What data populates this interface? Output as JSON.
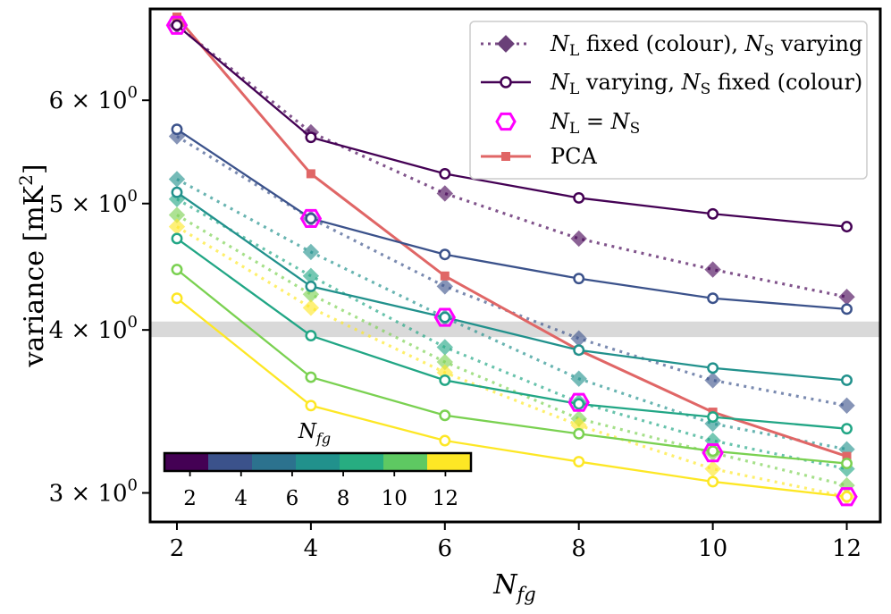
{
  "chart_data": {
    "type": "line",
    "xlabel": "N_fg",
    "ylabel": "variance [mK^2]",
    "yscale": "log",
    "x": [
      2,
      4,
      6,
      8,
      10,
      12
    ],
    "xlim": [
      1.6,
      12.5
    ],
    "ylim": [
      2.85,
      7.05
    ],
    "xticks": [
      "2",
      "4",
      "6",
      "8",
      "10",
      "12"
    ],
    "yticks": [
      {
        "value": 3,
        "mant": "3",
        "exp": "0"
      },
      {
        "value": 4,
        "mant": "4",
        "exp": "0"
      },
      {
        "value": 5,
        "mant": "5",
        "exp": "0"
      },
      {
        "value": 6,
        "mant": "6",
        "exp": "0"
      }
    ],
    "reference_band": {
      "low": 3.95,
      "high": 4.06
    },
    "varying": [
      {
        "name": "N_S = 2",
        "color": "#440154",
        "values": [
          6.85,
          5.62,
          5.27,
          5.05,
          4.91,
          4.8
        ]
      },
      {
        "name": "N_S = 4",
        "color": "#3b528b",
        "values": [
          5.7,
          4.87,
          4.57,
          4.38,
          4.23,
          4.15
        ]
      },
      {
        "name": "N_S = 6",
        "color": "#21918c",
        "values": [
          5.1,
          4.32,
          4.09,
          3.86,
          3.74,
          3.66
        ]
      },
      {
        "name": "N_S = 8",
        "color": "#21a685",
        "values": [
          4.7,
          3.96,
          3.66,
          3.51,
          3.43,
          3.36
        ]
      },
      {
        "name": "N_S = 10",
        "color": "#7ad151",
        "values": [
          4.45,
          3.68,
          3.44,
          3.33,
          3.23,
          3.16
        ]
      },
      {
        "name": "N_S = 12",
        "color": "#fde725",
        "values": [
          4.23,
          3.5,
          3.29,
          3.17,
          3.06,
          2.98
        ]
      }
    ],
    "fixed": [
      {
        "name": "N_L = 2",
        "color": "#440154",
        "values": [
          6.85,
          5.67,
          5.09,
          4.7,
          4.45,
          4.24
        ]
      },
      {
        "name": "N_L = 4",
        "color": "#3b528b",
        "values": [
          5.63,
          4.87,
          4.32,
          3.94,
          3.66,
          3.5
        ]
      },
      {
        "name": "N_L = 6",
        "color": "#21918c",
        "values": [
          5.22,
          4.59,
          4.09,
          3.67,
          3.39,
          3.24
        ]
      },
      {
        "name": "N_L = 8",
        "color": "#21a685",
        "values": [
          5.04,
          4.4,
          3.88,
          3.52,
          3.29,
          3.13
        ]
      },
      {
        "name": "N_L = 10",
        "color": "#7ad151",
        "values": [
          4.9,
          4.26,
          3.78,
          3.42,
          3.22,
          3.04
        ]
      },
      {
        "name": "N_L = 12",
        "color": "#fde725",
        "values": [
          4.8,
          4.16,
          3.71,
          3.38,
          3.13,
          2.98
        ]
      }
    ],
    "equal": {
      "name": "N_L = N_S",
      "color": "#ff00ff",
      "values": [
        6.85,
        4.87,
        4.09,
        3.52,
        3.22,
        2.98
      ]
    },
    "pca": {
      "name": "PCA",
      "color": "#e06666",
      "values": [
        6.95,
        5.27,
        4.4,
        3.86,
        3.46,
        3.2
      ]
    },
    "legend": {
      "placement": "top-right",
      "fixed": {
        "a": "N",
        "a_sub": "L",
        "b": " fixed (colour), ",
        "c": "N",
        "c_sub": "S",
        "d": " varying"
      },
      "varying": {
        "a": "N",
        "a_sub": "L",
        "b": " varying, ",
        "c": "N",
        "c_sub": "S",
        "d": " fixed (colour)"
      },
      "equal": {
        "a": "N",
        "a_sub": "L",
        "b": " = ",
        "c": "N",
        "c_sub": "S"
      },
      "pca": "PCA"
    },
    "colorbar": {
      "label": "N",
      "label_sub": "fg",
      "placement": "bottom-left inset",
      "ticks": [
        "2",
        "4",
        "6",
        "8",
        "10",
        "12"
      ],
      "tick_values": [
        2,
        4,
        6,
        8,
        10,
        12
      ],
      "range": [
        1,
        13
      ],
      "colors": [
        "#440154",
        "#3b528b",
        "#2c728e",
        "#21918c",
        "#27ad81",
        "#5ec962",
        "#fde725"
      ]
    }
  }
}
